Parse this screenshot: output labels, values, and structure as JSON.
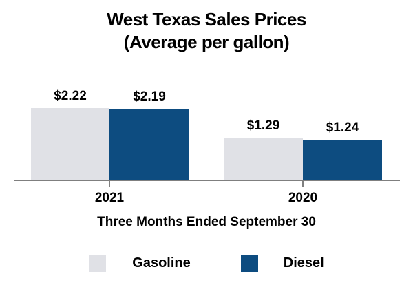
{
  "chart_data": {
    "type": "bar",
    "title": "West Texas Sales Prices",
    "subtitle": "(Average per gallon)",
    "xlabel": "Three Months Ended September 30",
    "ylabel": "",
    "categories": [
      "2021",
      "2020"
    ],
    "series": [
      {
        "name": "Gasoline",
        "values": [
          2.22,
          1.29
        ],
        "labels": [
          "$2.22",
          "$1.29"
        ],
        "color": "#e0e1e6"
      },
      {
        "name": "Diesel",
        "values": [
          2.19,
          1.24
        ],
        "labels": [
          "$2.19",
          "$1.24"
        ],
        "color": "#0d4c80"
      }
    ],
    "ylim": [
      0,
      2.5
    ],
    "grid": false,
    "legend_position": "bottom",
    "value_prefix": "$",
    "axis_color": "#7f7f7f",
    "text_color": "#000000",
    "background_color": "#ffffff"
  }
}
